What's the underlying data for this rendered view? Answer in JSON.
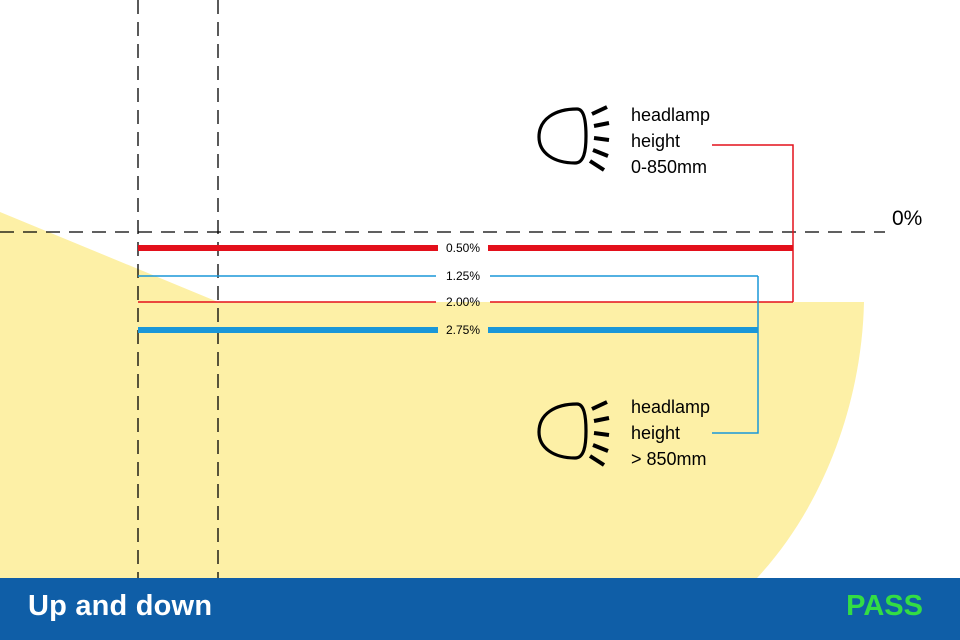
{
  "colors": {
    "beam_fill": "#fdf0a6",
    "low_lamp_line": "#e3101b",
    "high_lamp_line": "#1a97d8",
    "footer_bg": "#0f5ea7",
    "pass": "#33dd44"
  },
  "reference_line_label": "0%",
  "levels": [
    {
      "label": "0.50%",
      "group": "low",
      "style": "thick"
    },
    {
      "label": "1.25%",
      "group": "high",
      "style": "thin"
    },
    {
      "label": "2.00%",
      "group": "low",
      "style": "thin"
    },
    {
      "label": "2.75%",
      "group": "high",
      "style": "thick"
    }
  ],
  "low_headlamp": {
    "icon": "headlamp-icon",
    "caption_line1": "headlamp",
    "caption_line2": "height",
    "caption_line3": "0-850mm"
  },
  "high_headlamp": {
    "icon": "headlamp-icon",
    "caption_line1": "headlamp",
    "caption_line2": "height",
    "caption_line3": "> 850mm"
  },
  "footer": {
    "title": "Up and down",
    "status": "PASS"
  }
}
